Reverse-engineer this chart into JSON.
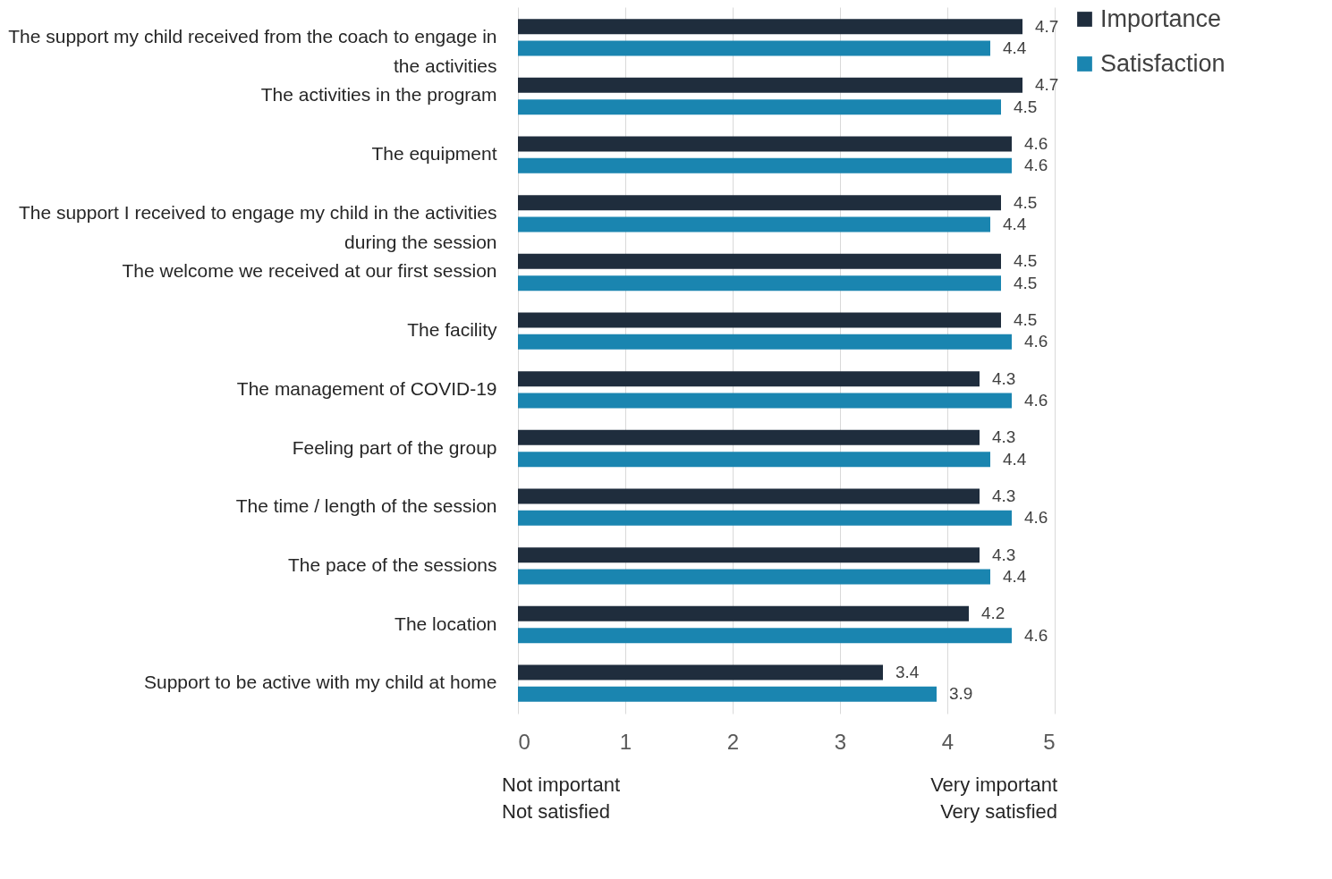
{
  "chart_data": {
    "type": "bar",
    "orientation": "horizontal",
    "categories": [
      "The support my child received from the coach to engage in the activities",
      "The activities in the program",
      "The equipment",
      "The support I received to engage my child in the activities during the session",
      "The welcome we received at our first session",
      "The facility",
      "The management of COVID-19",
      "Feeling part of the group",
      "The time / length of the session",
      "The pace of the sessions",
      "The location",
      "Support to be active with my child at home"
    ],
    "series": [
      {
        "name": "Importance",
        "color": "#1f2d3d",
        "values": [
          4.7,
          4.7,
          4.6,
          4.5,
          4.5,
          4.5,
          4.3,
          4.3,
          4.3,
          4.3,
          4.2,
          3.4
        ]
      },
      {
        "name": "Satisfaction",
        "color": "#1a85b0",
        "values": [
          4.4,
          4.5,
          4.6,
          4.4,
          4.5,
          4.6,
          4.6,
          4.4,
          4.6,
          4.4,
          4.6,
          3.9
        ]
      }
    ],
    "xlim": [
      0,
      5
    ],
    "xticks": [
      0,
      1,
      2,
      3,
      4,
      5
    ],
    "grid": "x",
    "legend": "right",
    "data_labels": true,
    "annotations": [
      "Not important",
      "Very important",
      "Not satisfied",
      "Very satisfied"
    ]
  }
}
